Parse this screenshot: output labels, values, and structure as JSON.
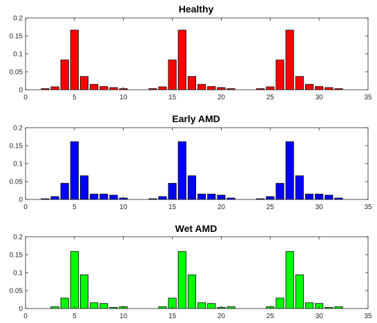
{
  "chart_data": [
    {
      "type": "bar",
      "title": "Healthy",
      "color": "#ff0000",
      "x": [
        2,
        3,
        4,
        5,
        6,
        7,
        8,
        9,
        10,
        13,
        14,
        15,
        16,
        17,
        18,
        19,
        20,
        21,
        24,
        25,
        26,
        27,
        28,
        29,
        30,
        31,
        32
      ],
      "values": [
        0.003,
        0.008,
        0.083,
        0.166,
        0.037,
        0.015,
        0.009,
        0.006,
        0.003,
        0.003,
        0.008,
        0.083,
        0.166,
        0.037,
        0.015,
        0.009,
        0.006,
        0.003,
        0.003,
        0.008,
        0.083,
        0.166,
        0.037,
        0.015,
        0.009,
        0.006,
        0.003
      ],
      "xlim": [
        0,
        35
      ],
      "ylim": [
        0,
        0.2
      ],
      "xticks": [
        "0",
        "5",
        "10",
        "15",
        "20",
        "25",
        "30",
        "35"
      ],
      "yticks": [
        "0",
        "0.05",
        "0.1",
        "0.15",
        "0.2"
      ],
      "grid": false
    },
    {
      "type": "bar",
      "title": "Early AMD",
      "color": "#0000ff",
      "x": [
        2,
        3,
        4,
        5,
        6,
        7,
        8,
        9,
        10,
        13,
        14,
        15,
        16,
        17,
        18,
        19,
        20,
        21,
        24,
        25,
        26,
        27,
        28,
        29,
        30,
        31,
        32
      ],
      "values": [
        0.002,
        0.008,
        0.045,
        0.161,
        0.066,
        0.015,
        0.015,
        0.012,
        0.004,
        0.002,
        0.008,
        0.045,
        0.161,
        0.066,
        0.015,
        0.015,
        0.012,
        0.004,
        0.002,
        0.008,
        0.045,
        0.161,
        0.066,
        0.015,
        0.015,
        0.012,
        0.004
      ],
      "xlim": [
        0,
        35
      ],
      "ylim": [
        0,
        0.2
      ],
      "xticks": [
        "0",
        "5",
        "10",
        "15",
        "20",
        "25",
        "30",
        "35"
      ],
      "yticks": [
        "0",
        "0.05",
        "0.1",
        "0.15",
        "0.2"
      ],
      "grid": false
    },
    {
      "type": "bar",
      "title": "Wet AMD",
      "color": "#00ff00",
      "x": [
        3,
        4,
        5,
        6,
        7,
        8,
        9,
        10,
        14,
        15,
        16,
        17,
        18,
        19,
        20,
        21,
        25,
        26,
        27,
        28,
        29,
        30,
        31,
        32
      ],
      "values": [
        0.005,
        0.029,
        0.159,
        0.094,
        0.016,
        0.014,
        0.003,
        0.005,
        0.005,
        0.029,
        0.159,
        0.094,
        0.016,
        0.014,
        0.003,
        0.005,
        0.005,
        0.029,
        0.159,
        0.094,
        0.016,
        0.014,
        0.003,
        0.005
      ],
      "xlim": [
        0,
        35
      ],
      "ylim": [
        0,
        0.2
      ],
      "xticks": [
        "0",
        "5",
        "10",
        "15",
        "20",
        "25",
        "30",
        "35"
      ],
      "yticks": [
        "0",
        "0.05",
        "0.1",
        "0.15",
        "0.2"
      ],
      "grid": false
    }
  ]
}
